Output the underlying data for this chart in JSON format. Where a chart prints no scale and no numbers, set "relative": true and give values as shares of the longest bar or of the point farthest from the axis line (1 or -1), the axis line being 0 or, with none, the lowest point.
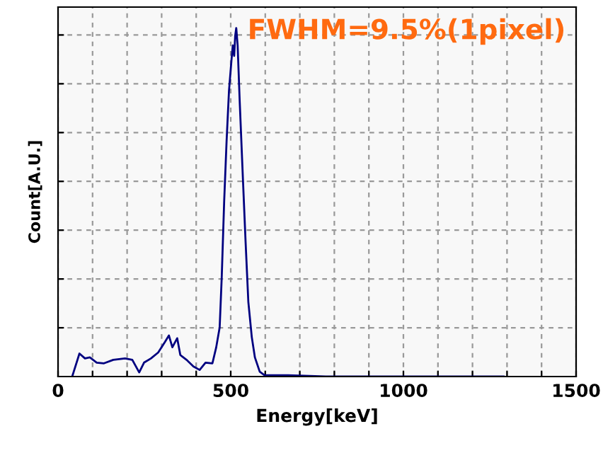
{
  "chart_data": {
    "type": "line",
    "xlabel": "Energy[keV]",
    "ylabel": "Count[A.U.]",
    "annotations": [
      "FWHM=9.5%(1pixel)"
    ],
    "relative": true,
    "grid": true,
    "xlim": [
      0,
      1500
    ],
    "xticks": [
      0,
      {
        "value": 100,
        "label": null
      },
      {
        "value": 200,
        "label": null
      },
      {
        "value": 300,
        "label": null
      },
      {
        "value": 400,
        "label": null
      },
      500,
      {
        "value": 600,
        "label": null
      },
      {
        "value": 700,
        "label": null
      },
      {
        "value": 800,
        "label": null
      },
      {
        "value": 900,
        "label": null
      },
      1000,
      {
        "value": 1100,
        "label": null
      },
      {
        "value": 1200,
        "label": null
      },
      {
        "value": 1300,
        "label": null
      },
      {
        "value": 1400,
        "label": null
      },
      1500
    ],
    "tick_labels": "x",
    "series": [
      {
        "color": "#000080",
        "x": [
          41,
          62,
          78,
          92,
          112,
          133,
          160,
          194,
          215,
          235,
          249,
          269,
          290,
          310,
          321,
          331,
          345,
          354,
          372,
          392,
          410,
          427,
          447,
          458,
          468,
          474,
          481,
          488,
          495,
          502,
          506,
          510,
          513,
          516,
          520,
          526,
          535,
          543,
          551,
          561,
          570,
          584,
          598,
          666,
          775,
          1060,
          1290
        ],
        "values": [
          0,
          0.066,
          0.052,
          0.055,
          0.04,
          0.038,
          0.048,
          0.052,
          0.048,
          0.012,
          0.04,
          0.052,
          0.069,
          0.1,
          0.118,
          0.084,
          0.11,
          0.062,
          0.048,
          0.029,
          0.019,
          0.04,
          0.038,
          0.084,
          0.141,
          0.286,
          0.502,
          0.675,
          0.82,
          0.906,
          0.95,
          0.92,
          0.978,
          1.0,
          0.95,
          0.79,
          0.574,
          0.387,
          0.214,
          0.113,
          0.055,
          0.014,
          0.004,
          0.004,
          0,
          0,
          0
        ]
      }
    ]
  }
}
